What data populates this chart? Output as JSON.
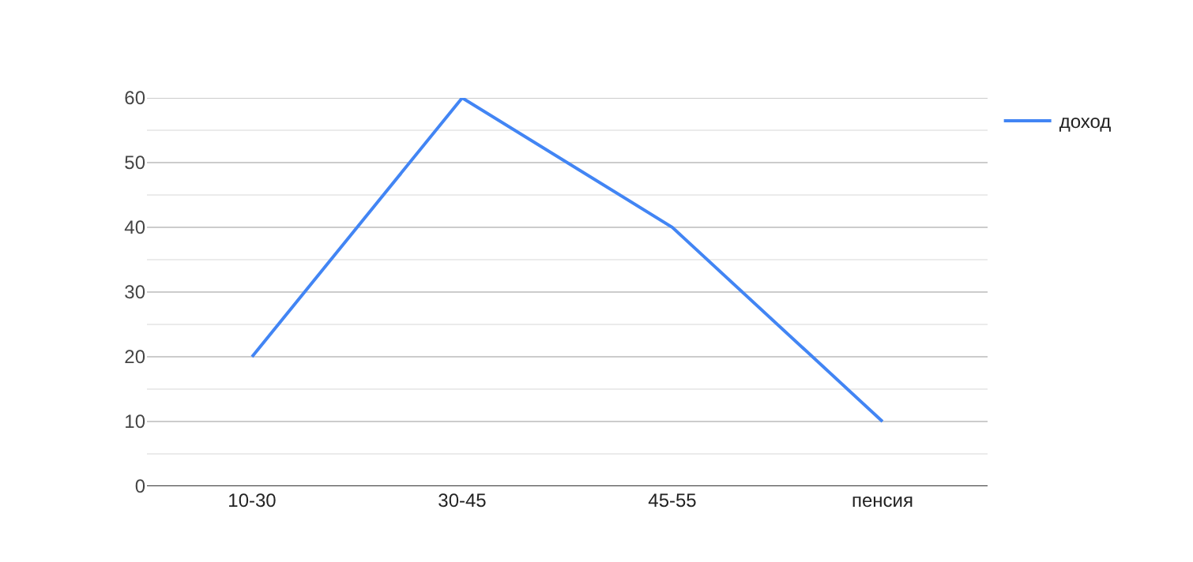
{
  "chart_data": {
    "type": "line",
    "categories": [
      "10-30",
      "30-45",
      "45-55",
      "пенсия"
    ],
    "series": [
      {
        "name": "доход",
        "color": "#4285f4",
        "values": [
          20,
          60,
          40,
          10
        ]
      }
    ],
    "ylim": [
      0,
      60
    ],
    "yticks": [
      0,
      {
        "value": 5,
        "label": null
      },
      10,
      {
        "value": 15,
        "label": null
      },
      20,
      {
        "value": 25,
        "label": null
      },
      30,
      {
        "value": 35,
        "label": null
      },
      40,
      {
        "value": 45,
        "label": null
      },
      50,
      {
        "value": 55,
        "label": null
      },
      60
    ],
    "grid": "y",
    "legend": "top right",
    "marker": "none",
    "line_style": "solid"
  }
}
